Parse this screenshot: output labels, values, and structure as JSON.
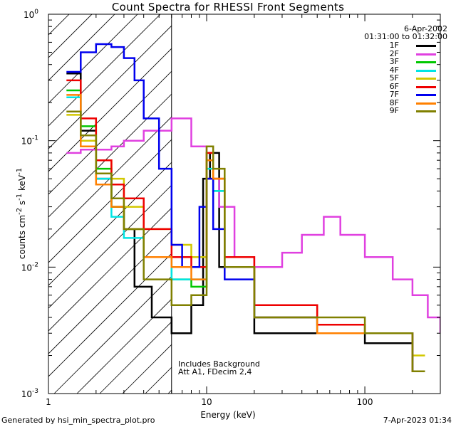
{
  "chart_data": {
    "type": "line",
    "title": "Count Spectra for RHESSI Front Segments",
    "xlabel": "Energy (keV)",
    "ylabel_html": "counts cm<sup>-2</sup> s<sup>-1</sup> keV<sup>-1</sup>",
    "x_scale": "log",
    "y_scale": "log",
    "xlim": [
      1,
      300
    ],
    "ylim": [
      0.001,
      1
    ],
    "x_ticks": [
      1,
      10,
      100
    ],
    "x_tick_labels": [
      "1",
      "10",
      "100"
    ],
    "y_tick_labels": [
      "10^-3",
      "10^-2",
      "10^-1",
      "10^0"
    ],
    "hatched_region_xmax_keV": 6,
    "legend": {
      "date": "6-Apr-2002",
      "time_range": "01:31:00 to 01:32:00",
      "entries": [
        {
          "name": "1F",
          "color": "#000000"
        },
        {
          "name": "2F",
          "color": "#e040e0"
        },
        {
          "name": "3F",
          "color": "#00c800"
        },
        {
          "name": "4F",
          "color": "#00e5e5"
        },
        {
          "name": "5F",
          "color": "#d2c800"
        },
        {
          "name": "6F",
          "color": "#ee0000"
        },
        {
          "name": "7F",
          "color": "#0000ee"
        },
        {
          "name": "8F",
          "color": "#ff8000"
        },
        {
          "name": "9F",
          "color": "#808000"
        }
      ]
    },
    "annotations": [
      "Includes Background",
      "Att A1, FDecim 2,4"
    ],
    "series": [
      {
        "name": "1F",
        "points": [
          [
            1.3,
            0.34
          ],
          [
            1.6,
            0.12
          ],
          [
            2.0,
            0.05
          ],
          [
            2.5,
            0.03
          ],
          [
            3.0,
            0.02
          ],
          [
            3.5,
            0.007
          ],
          [
            4.5,
            0.004
          ],
          [
            6.0,
            0.003
          ],
          [
            8.0,
            0.005
          ],
          [
            9.5,
            0.05
          ],
          [
            10.5,
            0.08
          ],
          [
            12,
            0.01
          ],
          [
            20,
            0.003
          ],
          [
            50,
            0.003
          ],
          [
            100,
            0.0025
          ],
          [
            200,
            0.0015
          ]
        ]
      },
      {
        "name": "2F",
        "points": [
          [
            1.3,
            0.08
          ],
          [
            1.6,
            0.085
          ],
          [
            2.0,
            0.085
          ],
          [
            2.5,
            0.09
          ],
          [
            3.0,
            0.1
          ],
          [
            4.0,
            0.12
          ],
          [
            6.0,
            0.15
          ],
          [
            8.0,
            0.09
          ],
          [
            10,
            0.05
          ],
          [
            12,
            0.03
          ],
          [
            15,
            0.012
          ],
          [
            20,
            0.01
          ],
          [
            30,
            0.013
          ],
          [
            40,
            0.018
          ],
          [
            55,
            0.025
          ],
          [
            70,
            0.018
          ],
          [
            100,
            0.012
          ],
          [
            150,
            0.008
          ],
          [
            200,
            0.006
          ],
          [
            250,
            0.004
          ],
          [
            300,
            0.003
          ]
        ]
      },
      {
        "name": "3F",
        "points": [
          [
            1.3,
            0.25
          ],
          [
            1.6,
            0.13
          ],
          [
            2.0,
            0.06
          ],
          [
            2.5,
            0.03
          ],
          [
            3.0,
            0.02
          ],
          [
            4.0,
            0.012
          ],
          [
            6.0,
            0.008
          ],
          [
            8.0,
            0.007
          ],
          [
            10,
            0.07
          ],
          [
            11,
            0.04
          ],
          [
            13,
            0.01
          ],
          [
            20,
            0.004
          ],
          [
            50,
            0.003
          ],
          [
            100,
            0.003
          ],
          [
            200,
            0.0015
          ]
        ]
      },
      {
        "name": "4F",
        "points": [
          [
            1.3,
            0.22
          ],
          [
            1.6,
            0.1
          ],
          [
            2.0,
            0.05
          ],
          [
            2.5,
            0.025
          ],
          [
            3.0,
            0.017
          ],
          [
            4.0,
            0.012
          ],
          [
            6.0,
            0.008
          ],
          [
            8.0,
            0.008
          ],
          [
            10,
            0.06
          ],
          [
            11,
            0.04
          ],
          [
            13,
            0.01
          ],
          [
            20,
            0.004
          ],
          [
            50,
            0.003
          ],
          [
            100,
            0.003
          ],
          [
            200,
            0.0015
          ]
        ]
      },
      {
        "name": "5F",
        "points": [
          [
            1.3,
            0.16
          ],
          [
            1.6,
            0.1
          ],
          [
            2.0,
            0.07
          ],
          [
            2.5,
            0.05
          ],
          [
            3.0,
            0.03
          ],
          [
            4.0,
            0.02
          ],
          [
            6.0,
            0.015
          ],
          [
            8.0,
            0.012
          ],
          [
            10,
            0.08
          ],
          [
            11,
            0.05
          ],
          [
            13,
            0.01
          ],
          [
            20,
            0.005
          ],
          [
            50,
            0.0035
          ],
          [
            100,
            0.003
          ],
          [
            200,
            0.002
          ]
        ]
      },
      {
        "name": "6F",
        "points": [
          [
            1.3,
            0.3
          ],
          [
            1.6,
            0.15
          ],
          [
            2.0,
            0.07
          ],
          [
            2.5,
            0.045
          ],
          [
            3.0,
            0.035
          ],
          [
            4.0,
            0.02
          ],
          [
            6.0,
            0.012
          ],
          [
            8.0,
            0.01
          ],
          [
            10,
            0.08
          ],
          [
            11,
            0.05
          ],
          [
            13,
            0.012
          ],
          [
            20,
            0.005
          ],
          [
            50,
            0.0035
          ],
          [
            100,
            0.003
          ],
          [
            200,
            0.0015
          ]
        ]
      },
      {
        "name": "7F",
        "points": [
          [
            1.3,
            0.35
          ],
          [
            1.6,
            0.5
          ],
          [
            2.0,
            0.58
          ],
          [
            2.5,
            0.55
          ],
          [
            3.0,
            0.45
          ],
          [
            3.5,
            0.3
          ],
          [
            4.0,
            0.15
          ],
          [
            5.0,
            0.06
          ],
          [
            6.0,
            0.015
          ],
          [
            7.0,
            0.01
          ],
          [
            8.0,
            0.01
          ],
          [
            9.0,
            0.03
          ],
          [
            10,
            0.05
          ],
          [
            11,
            0.02
          ],
          [
            13,
            0.008
          ],
          [
            20,
            0.004
          ],
          [
            50,
            0.003
          ],
          [
            100,
            0.003
          ],
          [
            200,
            0.0015
          ]
        ]
      },
      {
        "name": "8F",
        "points": [
          [
            1.3,
            0.23
          ],
          [
            1.6,
            0.09
          ],
          [
            2.0,
            0.045
          ],
          [
            2.5,
            0.03
          ],
          [
            3.0,
            0.02
          ],
          [
            4.0,
            0.012
          ],
          [
            6.0,
            0.01
          ],
          [
            8.0,
            0.008
          ],
          [
            10,
            0.07
          ],
          [
            11,
            0.05
          ],
          [
            13,
            0.01
          ],
          [
            20,
            0.004
          ],
          [
            50,
            0.003
          ],
          [
            100,
            0.003
          ],
          [
            200,
            0.0015
          ]
        ]
      },
      {
        "name": "9F",
        "points": [
          [
            1.3,
            0.17
          ],
          [
            1.6,
            0.11
          ],
          [
            2.0,
            0.055
          ],
          [
            2.5,
            0.035
          ],
          [
            3.0,
            0.02
          ],
          [
            4.0,
            0.008
          ],
          [
            6.0,
            0.005
          ],
          [
            8.0,
            0.006
          ],
          [
            10,
            0.09
          ],
          [
            11,
            0.06
          ],
          [
            13,
            0.01
          ],
          [
            20,
            0.004
          ],
          [
            50,
            0.004
          ],
          [
            100,
            0.003
          ],
          [
            200,
            0.0015
          ]
        ]
      }
    ]
  },
  "footer": {
    "generated_by": "Generated by hsi_min_spectra_plot.pro",
    "timestamp": "7-Apr-2023 01:34"
  }
}
